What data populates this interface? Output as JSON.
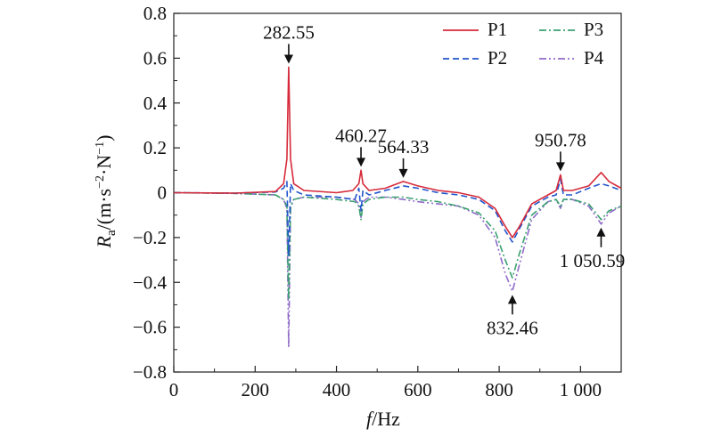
{
  "chart_data": {
    "type": "line",
    "xlabel_var": "f",
    "xlabel_unit": "/Hz",
    "ylabel_var": "R",
    "ylabel_sub": "a",
    "ylabel_unit": "/(m·s",
    "ylabel_exp1": "−2",
    "ylabel_mid": "·N",
    "ylabel_exp2": "−1",
    "ylabel_close": ")",
    "xlim": [
      0,
      1100
    ],
    "ylim": [
      -0.8,
      0.8
    ],
    "grid": false,
    "legend_position": "top-right",
    "x_ticks": [
      0,
      200,
      400,
      600,
      800,
      1000
    ],
    "x_tick_labels": [
      "0",
      "200",
      "400",
      "600",
      "800",
      "1 000"
    ],
    "y_ticks": [
      -0.8,
      -0.6,
      -0.4,
      -0.2,
      0,
      0.2,
      0.4,
      0.6,
      0.8
    ],
    "y_tick_labels": [
      "−0.8",
      "−0.6",
      "−0.4",
      "−0.2",
      "0",
      "0.2",
      "0.4",
      "0.6",
      "0.8"
    ],
    "annotations": [
      {
        "text": "282.55",
        "x": 282.55,
        "y": 0.56,
        "dir": "down"
      },
      {
        "text": "460.27",
        "x": 460.27,
        "y": 0.1,
        "dir": "down"
      },
      {
        "text": "564.33",
        "x": 564.33,
        "y": 0.05,
        "dir": "down"
      },
      {
        "text": "950.78",
        "x": 950.78,
        "y": 0.08,
        "dir": "down"
      },
      {
        "text": "832.46",
        "x": 832.46,
        "y": -0.44,
        "dir": "up"
      },
      {
        "text": "1 050.59",
        "x": 1050.59,
        "y": -0.14,
        "dir": "up"
      }
    ],
    "series": [
      {
        "name": "P1",
        "color": "#d62a3a",
        "style": "solid",
        "points": [
          [
            0,
            0
          ],
          [
            150,
            -0.002
          ],
          [
            250,
            0.005
          ],
          [
            270,
            0.04
          ],
          [
            278,
            0.15
          ],
          [
            282.55,
            0.56
          ],
          [
            287,
            0.15
          ],
          [
            295,
            0.04
          ],
          [
            320,
            0.01
          ],
          [
            400,
            0.0
          ],
          [
            440,
            0.01
          ],
          [
            455,
            0.04
          ],
          [
            460.27,
            0.1
          ],
          [
            465,
            0.04
          ],
          [
            480,
            0.01
          ],
          [
            520,
            0.02
          ],
          [
            564.33,
            0.05
          ],
          [
            600,
            0.03
          ],
          [
            650,
            0.01
          ],
          [
            700,
            0
          ],
          [
            750,
            -0.02
          ],
          [
            790,
            -0.07
          ],
          [
            815,
            -0.15
          ],
          [
            832.46,
            -0.2
          ],
          [
            850,
            -0.15
          ],
          [
            880,
            -0.05
          ],
          [
            920,
            -0.01
          ],
          [
            940,
            0.01
          ],
          [
            950.78,
            0.08
          ],
          [
            958,
            0.01
          ],
          [
            980,
            0.01
          ],
          [
            1020,
            0.03
          ],
          [
            1050.59,
            0.09
          ],
          [
            1070,
            0.05
          ],
          [
            1100,
            0.02
          ]
        ]
      },
      {
        "name": "P2",
        "color": "#2255cc",
        "style": "dashed",
        "points": [
          [
            0,
            0
          ],
          [
            150,
            -0.002
          ],
          [
            250,
            0.003
          ],
          [
            270,
            0.02
          ],
          [
            278,
            0.05
          ],
          [
            282.55,
            -0.28
          ],
          [
            287,
            0.04
          ],
          [
            295,
            0.01
          ],
          [
            320,
            -0.01
          ],
          [
            400,
            -0.02
          ],
          [
            445,
            -0.03
          ],
          [
            455,
            0.02
          ],
          [
            460.27,
            -0.08
          ],
          [
            465,
            0.01
          ],
          [
            480,
            -0.01
          ],
          [
            520,
            0.01
          ],
          [
            564.33,
            0.03
          ],
          [
            600,
            0.02
          ],
          [
            650,
            0.0
          ],
          [
            700,
            -0.01
          ],
          [
            750,
            -0.03
          ],
          [
            790,
            -0.08
          ],
          [
            815,
            -0.17
          ],
          [
            832.46,
            -0.22
          ],
          [
            850,
            -0.16
          ],
          [
            880,
            -0.06
          ],
          [
            920,
            -0.02
          ],
          [
            940,
            -0.01
          ],
          [
            950.78,
            0.06
          ],
          [
            958,
            -0.01
          ],
          [
            980,
            -0.01
          ],
          [
            1020,
            0.02
          ],
          [
            1050.59,
            0.04
          ],
          [
            1070,
            0.03
          ],
          [
            1100,
            0.01
          ]
        ]
      },
      {
        "name": "P3",
        "color": "#3aa070",
        "style": "dashdot",
        "points": [
          [
            0,
            0
          ],
          [
            150,
            -0.003
          ],
          [
            250,
            -0.01
          ],
          [
            270,
            -0.03
          ],
          [
            278,
            -0.06
          ],
          [
            282.55,
            -0.48
          ],
          [
            287,
            -0.06
          ],
          [
            295,
            -0.03
          ],
          [
            320,
            -0.02
          ],
          [
            400,
            -0.03
          ],
          [
            445,
            -0.04
          ],
          [
            455,
            -0.06
          ],
          [
            460.27,
            -0.12
          ],
          [
            465,
            -0.05
          ],
          [
            480,
            -0.03
          ],
          [
            520,
            -0.02
          ],
          [
            564.33,
            -0.02
          ],
          [
            600,
            -0.03
          ],
          [
            650,
            -0.04
          ],
          [
            700,
            -0.06
          ],
          [
            750,
            -0.09
          ],
          [
            790,
            -0.17
          ],
          [
            815,
            -0.3
          ],
          [
            832.46,
            -0.38
          ],
          [
            850,
            -0.27
          ],
          [
            880,
            -0.1
          ],
          [
            920,
            -0.04
          ],
          [
            940,
            -0.03
          ],
          [
            950.78,
            -0.06
          ],
          [
            958,
            -0.03
          ],
          [
            980,
            -0.03
          ],
          [
            1020,
            -0.05
          ],
          [
            1050.59,
            -0.12
          ],
          [
            1070,
            -0.08
          ],
          [
            1100,
            -0.06
          ]
        ]
      },
      {
        "name": "P4",
        "color": "#8e6bc9",
        "style": "dashdotdot",
        "points": [
          [
            0,
            0
          ],
          [
            150,
            -0.003
          ],
          [
            250,
            -0.01
          ],
          [
            270,
            -0.03
          ],
          [
            278,
            -0.07
          ],
          [
            282.55,
            -0.69
          ],
          [
            287,
            -0.07
          ],
          [
            295,
            -0.03
          ],
          [
            320,
            -0.02
          ],
          [
            400,
            -0.02
          ],
          [
            445,
            -0.03
          ],
          [
            455,
            -0.05
          ],
          [
            460.27,
            -0.11
          ],
          [
            465,
            -0.04
          ],
          [
            480,
            -0.02
          ],
          [
            520,
            -0.02
          ],
          [
            564.33,
            -0.03
          ],
          [
            600,
            -0.04
          ],
          [
            650,
            -0.05
          ],
          [
            700,
            -0.06
          ],
          [
            750,
            -0.1
          ],
          [
            790,
            -0.2
          ],
          [
            815,
            -0.36
          ],
          [
            832.46,
            -0.44
          ],
          [
            850,
            -0.32
          ],
          [
            880,
            -0.12
          ],
          [
            920,
            -0.04
          ],
          [
            940,
            -0.03
          ],
          [
            950.78,
            -0.07
          ],
          [
            958,
            -0.03
          ],
          [
            980,
            -0.03
          ],
          [
            1020,
            -0.06
          ],
          [
            1050.59,
            -0.14
          ],
          [
            1070,
            -0.09
          ],
          [
            1100,
            -0.06
          ]
        ]
      }
    ]
  }
}
